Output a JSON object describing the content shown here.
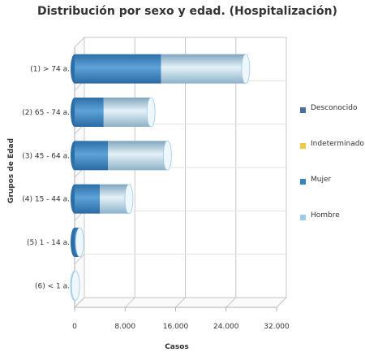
{
  "chart_data": {
    "type": "bar",
    "orientation": "horizontal",
    "stacked": true,
    "style": "3d-cylinder",
    "title": "Distribución por sexo y edad. (Hospitalización)",
    "xlabel": "Casos",
    "ylabel": "Grupos de Edad",
    "categories": [
      "(1) > 74 a.",
      "(2) 65 - 74 a.",
      "(3) 45 - 64 a.",
      "(4) 15 - 44 a.",
      "(5) 1 - 14 a.",
      "(6) < 1 a."
    ],
    "series": [
      {
        "name": "Desconocido",
        "color": "#4a6f9a",
        "values": [
          0,
          0,
          0,
          0,
          0,
          0
        ]
      },
      {
        "name": "Indeterminado",
        "color": "#f0c84a",
        "values": [
          0,
          0,
          0,
          0,
          0,
          0
        ]
      },
      {
        "name": "Mujer",
        "color": "#3a83bd",
        "values": [
          13700,
          4600,
          5300,
          4000,
          600,
          0
        ]
      },
      {
        "name": "Hombre",
        "color": "#9ccae8",
        "values": [
          13400,
          7500,
          9400,
          4600,
          200,
          150
        ]
      }
    ],
    "xlim": [
      0,
      32000
    ],
    "xticks": [
      "0",
      "8.000",
      "16.000",
      "24.000",
      "32.000"
    ],
    "grid": true,
    "legend_position": "right"
  }
}
